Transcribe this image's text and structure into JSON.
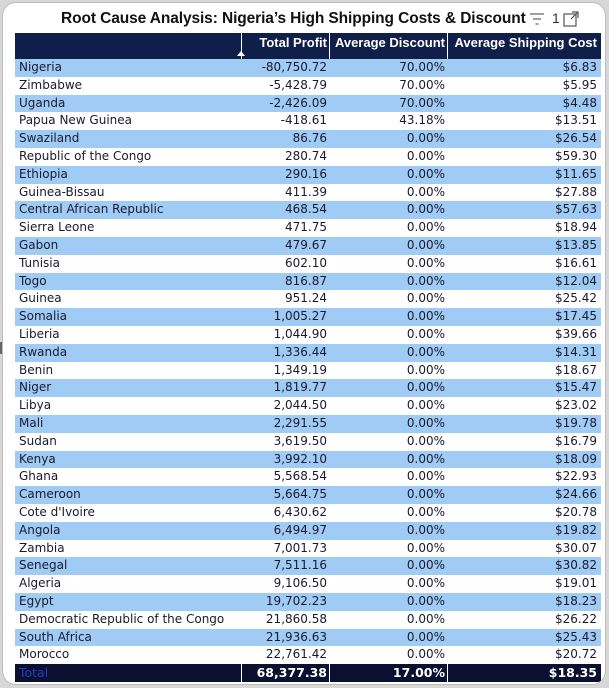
{
  "visual": {
    "title": "Root Cause Analysis: Nigeria’s High Shipping Costs & Discount",
    "filter_count": "1",
    "icons": {
      "filter": "filter-icon",
      "focus": "focus-mode-icon",
      "sort": "sort-ascending-icon"
    }
  },
  "colors": {
    "header_bg": "#0f1f4a",
    "band": "#9fcbf5",
    "total_bg": "#0c1030",
    "total_label": "#1d3fbf"
  },
  "table": {
    "columns": [
      "",
      "Total Profit",
      "Average Discount",
      "Average Shipping Cost"
    ],
    "sorted_column": "Total Profit",
    "rows": [
      [
        "Nigeria",
        "-80,750.72",
        "70.00%",
        "$6.83"
      ],
      [
        "Zimbabwe",
        "-5,428.79",
        "70.00%",
        "$5.95"
      ],
      [
        "Uganda",
        "-2,426.09",
        "70.00%",
        "$4.48"
      ],
      [
        "Papua New Guinea",
        "-418.61",
        "43.18%",
        "$13.51"
      ],
      [
        "Swaziland",
        "86.76",
        "0.00%",
        "$26.54"
      ],
      [
        "Republic of the Congo",
        "280.74",
        "0.00%",
        "$59.30"
      ],
      [
        "Ethiopia",
        "290.16",
        "0.00%",
        "$11.65"
      ],
      [
        "Guinea-Bissau",
        "411.39",
        "0.00%",
        "$27.88"
      ],
      [
        "Central African Republic",
        "468.54",
        "0.00%",
        "$57.63"
      ],
      [
        "Sierra Leone",
        "471.75",
        "0.00%",
        "$18.94"
      ],
      [
        "Gabon",
        "479.67",
        "0.00%",
        "$13.85"
      ],
      [
        "Tunisia",
        "602.10",
        "0.00%",
        "$16.61"
      ],
      [
        "Togo",
        "816.87",
        "0.00%",
        "$12.04"
      ],
      [
        "Guinea",
        "951.24",
        "0.00%",
        "$25.42"
      ],
      [
        "Somalia",
        "1,005.27",
        "0.00%",
        "$17.45"
      ],
      [
        "Liberia",
        "1,044.90",
        "0.00%",
        "$39.66"
      ],
      [
        "Rwanda",
        "1,336.44",
        "0.00%",
        "$14.31"
      ],
      [
        "Benin",
        "1,349.19",
        "0.00%",
        "$18.67"
      ],
      [
        "Niger",
        "1,819.77",
        "0.00%",
        "$15.47"
      ],
      [
        "Libya",
        "2,044.50",
        "0.00%",
        "$23.02"
      ],
      [
        "Mali",
        "2,291.55",
        "0.00%",
        "$19.78"
      ],
      [
        "Sudan",
        "3,619.50",
        "0.00%",
        "$16.79"
      ],
      [
        "Kenya",
        "3,992.10",
        "0.00%",
        "$18.09"
      ],
      [
        "Ghana",
        "5,568.54",
        "0.00%",
        "$22.93"
      ],
      [
        "Cameroon",
        "5,664.75",
        "0.00%",
        "$24.66"
      ],
      [
        "Cote d'Ivoire",
        "6,430.62",
        "0.00%",
        "$20.78"
      ],
      [
        "Angola",
        "6,494.97",
        "0.00%",
        "$19.82"
      ],
      [
        "Zambia",
        "7,001.73",
        "0.00%",
        "$30.07"
      ],
      [
        "Senegal",
        "7,511.16",
        "0.00%",
        "$30.82"
      ],
      [
        "Algeria",
        "9,106.50",
        "0.00%",
        "$19.01"
      ],
      [
        "Egypt",
        "19,702.23",
        "0.00%",
        "$18.23"
      ],
      [
        "Democratic Republic of the Congo",
        "21,860.58",
        "0.00%",
        "$26.22"
      ],
      [
        "South Africa",
        "21,936.63",
        "0.00%",
        "$25.43"
      ],
      [
        "Morocco",
        "22,761.42",
        "0.00%",
        "$20.72"
      ]
    ],
    "total": [
      "Total",
      "68,377.38",
      "17.00%",
      "$18.35"
    ]
  }
}
